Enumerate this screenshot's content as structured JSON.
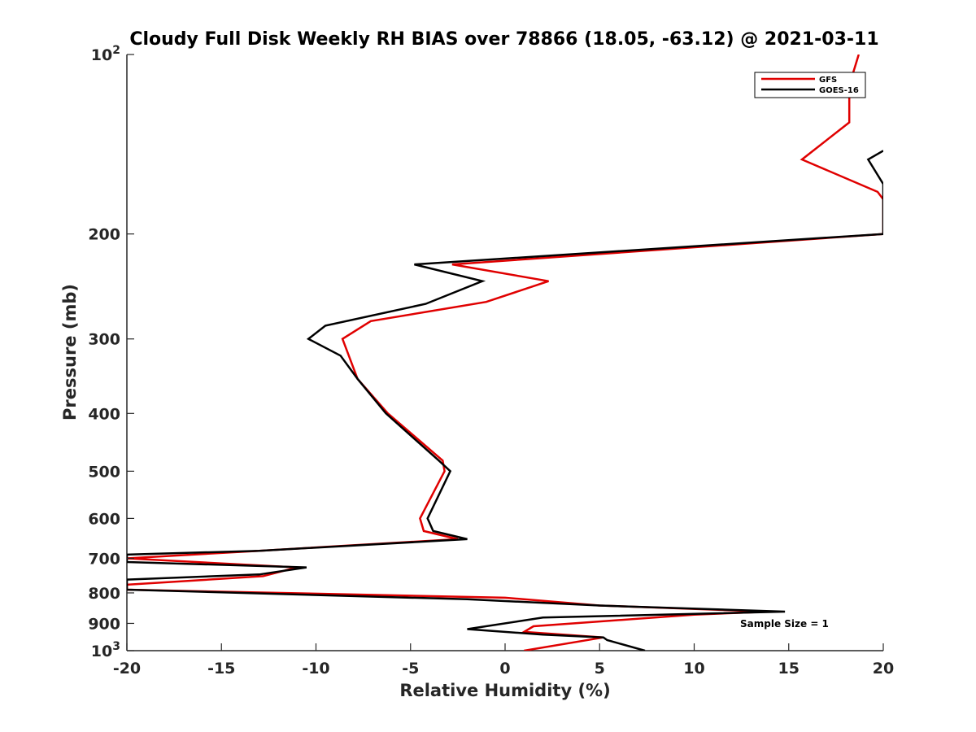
{
  "chart_data": {
    "type": "line",
    "title": "Cloudy Full Disk Weekly RH BIAS over 78866 (18.05, -63.12) @ 2021-03-11",
    "xlabel": "Relative Humidity (%)",
    "ylabel": "Pressure (mb)",
    "xlim": [
      -20,
      20
    ],
    "ylim": [
      100,
      1000
    ],
    "y_scale": "log",
    "y_reversed": true,
    "grid": false,
    "legend_position": "top-right",
    "x_ticks": [
      "-20",
      "-15",
      "-10",
      "-5",
      "0",
      "5",
      "10",
      "15",
      "20"
    ],
    "y_ticks": [
      {
        "base": "10",
        "exp": "2",
        "value": 100
      },
      {
        "label": "200",
        "value": 200
      },
      {
        "label": "300",
        "value": 300
      },
      {
        "label": "400",
        "value": 400
      },
      {
        "label": "500",
        "value": 500
      },
      {
        "label": "600",
        "value": 600
      },
      {
        "label": "700",
        "value": 700
      },
      {
        "label": "800",
        "value": 800
      },
      {
        "label": "900",
        "value": 900
      },
      {
        "base": "10",
        "exp": "3",
        "value": 1000
      }
    ],
    "annotation": "Sample Size = 1",
    "series": [
      {
        "name": "GFS",
        "color": "#e00000",
        "points": [
          [
            18.7,
            100
          ],
          [
            18.5,
            105
          ],
          [
            18.3,
            110
          ],
          [
            18.2,
            115
          ],
          [
            18.2,
            120
          ],
          [
            18.2,
            125
          ],
          [
            18.2,
            130
          ],
          [
            15.7,
            150
          ],
          [
            19.7,
            170
          ],
          [
            20.0,
            175
          ],
          [
            20.0,
            200
          ],
          [
            -2.8,
            225
          ],
          [
            2.3,
            240
          ],
          [
            -1.0,
            260
          ],
          [
            -7.1,
            280
          ],
          [
            -8.6,
            300
          ],
          [
            -7.8,
            350
          ],
          [
            -6.2,
            400
          ],
          [
            -3.3,
            480
          ],
          [
            -3.2,
            500
          ],
          [
            -4.5,
            600
          ],
          [
            -4.3,
            630
          ],
          [
            -2.5,
            650
          ],
          [
            -13.0,
            680
          ],
          [
            -20.0,
            700
          ],
          [
            -11.0,
            725
          ],
          [
            -12.8,
            750
          ],
          [
            -20.0,
            775
          ],
          [
            -20.0,
            790
          ],
          [
            0.0,
            815
          ],
          [
            5.0,
            840
          ],
          [
            14.0,
            860
          ],
          [
            10.0,
            870
          ],
          [
            1.5,
            910
          ],
          [
            1.0,
            930
          ],
          [
            5.2,
            950
          ],
          [
            1.0,
            1000
          ]
        ]
      },
      {
        "name": "GOES-16",
        "color": "#000000",
        "points": [
          [
            20.0,
            145
          ],
          [
            19.2,
            150
          ],
          [
            20.0,
            165
          ],
          [
            20.0,
            200
          ],
          [
            -4.8,
            225
          ],
          [
            -1.2,
            240
          ],
          [
            -4.2,
            262
          ],
          [
            -9.5,
            285
          ],
          [
            -10.4,
            300
          ],
          [
            -8.7,
            320
          ],
          [
            -7.8,
            350
          ],
          [
            -6.3,
            400
          ],
          [
            -3.5,
            480
          ],
          [
            -2.9,
            500
          ],
          [
            -4.1,
            600
          ],
          [
            -3.8,
            630
          ],
          [
            -2.0,
            650
          ],
          [
            -13.0,
            680
          ],
          [
            -20.0,
            690
          ],
          [
            -20.0,
            710
          ],
          [
            -10.5,
            725
          ],
          [
            -13.0,
            745
          ],
          [
            -20.0,
            760
          ],
          [
            -20.0,
            790
          ],
          [
            -2.0,
            820
          ],
          [
            5.0,
            840
          ],
          [
            14.8,
            860
          ],
          [
            2.0,
            880
          ],
          [
            -2.0,
            920
          ],
          [
            2.0,
            940
          ],
          [
            5.2,
            950
          ],
          [
            5.4,
            960
          ],
          [
            7.4,
            1000
          ]
        ]
      }
    ]
  }
}
